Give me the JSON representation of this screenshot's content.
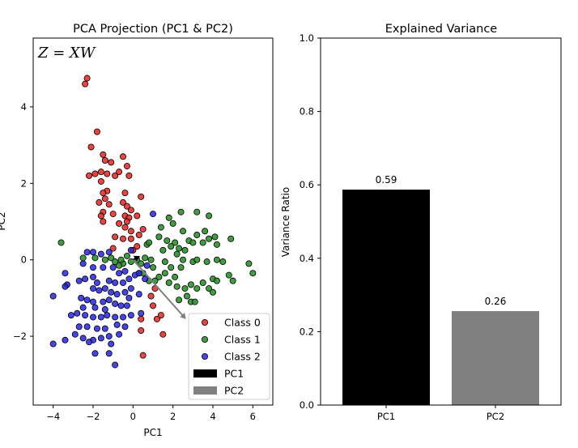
{
  "chart_data": [
    {
      "type": "scatter",
      "title": "PCA Projection (PC1 & PC2)",
      "xlabel": "PC1",
      "ylabel": "PC2",
      "xlim": [
        -5,
        7
      ],
      "ylim": [
        -3.8,
        5.8
      ],
      "xticks": [
        -4,
        -2,
        0,
        2,
        4,
        6
      ],
      "yticks": [
        -2,
        0,
        2,
        4
      ],
      "annotation": "Z = XW",
      "legend_position": "lower-right",
      "series": [
        {
          "name": "Class 0",
          "color": "#e8231f",
          "points": [
            [
              -2.4,
              4.6
            ],
            [
              -2.3,
              4.75
            ],
            [
              -1.8,
              3.35
            ],
            [
              -2.1,
              2.95
            ],
            [
              -1.5,
              2.75
            ],
            [
              -1.4,
              2.6
            ],
            [
              -1.1,
              2.55
            ],
            [
              -0.5,
              2.7
            ],
            [
              -1.3,
              2.25
            ],
            [
              -1.6,
              2.3
            ],
            [
              -1.9,
              2.25
            ],
            [
              -2.2,
              2.2
            ],
            [
              -0.9,
              2.2
            ],
            [
              -0.7,
              2.3
            ],
            [
              -0.3,
              2.45
            ],
            [
              -0.2,
              2.2
            ],
            [
              -1.6,
              2.05
            ],
            [
              -1.3,
              1.8
            ],
            [
              -1.5,
              1.75
            ],
            [
              -1.4,
              1.6
            ],
            [
              -1.7,
              1.5
            ],
            [
              -1.2,
              1.45
            ],
            [
              -0.4,
              1.75
            ],
            [
              0.4,
              1.65
            ],
            [
              -0.5,
              1.5
            ],
            [
              -0.3,
              1.4
            ],
            [
              -0.1,
              1.3
            ],
            [
              -1.5,
              1.25
            ],
            [
              -1.6,
              1.15
            ],
            [
              -1.0,
              1.2
            ],
            [
              -0.4,
              1.15
            ],
            [
              -0.2,
              1.1
            ],
            [
              0.2,
              1.15
            ],
            [
              -0.3,
              1.0
            ],
            [
              -0.7,
              0.95
            ],
            [
              -0.4,
              0.85
            ],
            [
              -0.1,
              0.75
            ],
            [
              0.3,
              0.65
            ],
            [
              -1.5,
              1.0
            ],
            [
              -0.9,
              0.6
            ],
            [
              -0.5,
              0.55
            ],
            [
              -0.1,
              0.55
            ],
            [
              -1.0,
              0.3
            ],
            [
              0.5,
              0.8
            ],
            [
              0.0,
              0.25
            ],
            [
              0.2,
              0.35
            ],
            [
              1.1,
              -0.75
            ],
            [
              0.9,
              -0.95
            ],
            [
              1.0,
              -1.2
            ],
            [
              1.4,
              -1.45
            ],
            [
              0.4,
              -1.55
            ],
            [
              1.2,
              -1.55
            ],
            [
              0.4,
              -1.85
            ],
            [
              1.5,
              -1.95
            ],
            [
              0.5,
              -2.5
            ]
          ]
        },
        {
          "name": "Class 1",
          "color": "#1e8c1e",
          "points": [
            [
              3.2,
              1.25
            ],
            [
              3.8,
              1.15
            ],
            [
              2.4,
              1.25
            ],
            [
              1.8,
              1.1
            ],
            [
              2.0,
              0.95
            ],
            [
              1.4,
              0.85
            ],
            [
              2.5,
              0.75
            ],
            [
              3.2,
              0.65
            ],
            [
              3.6,
              0.75
            ],
            [
              3.8,
              0.55
            ],
            [
              4.2,
              0.4
            ],
            [
              4.1,
              0.6
            ],
            [
              4.9,
              0.55
            ],
            [
              1.3,
              0.6
            ],
            [
              2.8,
              0.5
            ],
            [
              3.0,
              0.45
            ],
            [
              3.5,
              0.45
            ],
            [
              2.1,
              0.45
            ],
            [
              2.3,
              0.3
            ],
            [
              2.6,
              0.25
            ],
            [
              1.7,
              0.5
            ],
            [
              1.9,
              0.35
            ],
            [
              1.5,
              0.25
            ],
            [
              2.2,
              0.15
            ],
            [
              2.5,
              0.0
            ],
            [
              3.0,
              -0.05
            ],
            [
              3.2,
              0.0
            ],
            [
              3.7,
              -0.05
            ],
            [
              4.2,
              0.0
            ],
            [
              4.5,
              -0.05
            ],
            [
              5.8,
              -0.1
            ],
            [
              6.0,
              -0.35
            ],
            [
              4.8,
              -0.4
            ],
            [
              5.0,
              -0.55
            ],
            [
              4.0,
              -0.5
            ],
            [
              4.2,
              -0.55
            ],
            [
              3.5,
              -0.6
            ],
            [
              3.2,
              -0.75
            ],
            [
              3.8,
              -0.75
            ],
            [
              2.9,
              -0.65
            ],
            [
              2.6,
              -0.75
            ],
            [
              2.2,
              -0.7
            ],
            [
              1.8,
              -0.6
            ],
            [
              1.6,
              -0.35
            ],
            [
              1.3,
              -0.45
            ],
            [
              1.0,
              -0.2
            ],
            [
              0.9,
              0.0
            ],
            [
              0.6,
              0.05
            ],
            [
              0.4,
              -0.1
            ],
            [
              0.2,
              0.0
            ],
            [
              -0.1,
              -0.05
            ],
            [
              -0.3,
              0.1
            ],
            [
              -0.5,
              -0.1
            ],
            [
              0.7,
              0.4
            ],
            [
              0.5,
              -0.35
            ],
            [
              0.8,
              -0.55
            ],
            [
              1.1,
              -0.55
            ],
            [
              0.3,
              -0.35
            ],
            [
              2.1,
              -0.45
            ],
            [
              1.9,
              -0.2
            ],
            [
              2.7,
              -0.95
            ],
            [
              2.9,
              -1.1
            ],
            [
              3.1,
              -1.1
            ],
            [
              4.0,
              -0.85
            ],
            [
              2.3,
              -1.05
            ],
            [
              -0.7,
              -0.15
            ],
            [
              -0.9,
              -0.05
            ],
            [
              -1.1,
              0.05
            ],
            [
              -1.4,
              0.0
            ],
            [
              -1.9,
              0.05
            ],
            [
              -2.5,
              0.05
            ],
            [
              -3.6,
              0.45
            ],
            [
              -0.6,
              0.0
            ],
            [
              0.8,
              0.45
            ],
            [
              1.6,
              -0.05
            ],
            [
              2.4,
              -0.2
            ]
          ]
        },
        {
          "name": "Class 2",
          "color": "#2424e8",
          "points": [
            [
              -2.0,
              0.2
            ],
            [
              -2.3,
              0.2
            ],
            [
              -1.6,
              0.15
            ],
            [
              -1.2,
              0.2
            ],
            [
              -2.5,
              -0.1
            ],
            [
              -2.0,
              -0.2
            ],
            [
              -1.5,
              -0.2
            ],
            [
              -1.0,
              -0.2
            ],
            [
              -0.7,
              -0.35
            ],
            [
              -0.4,
              -0.3
            ],
            [
              -3.4,
              -0.35
            ],
            [
              -3.3,
              -0.65
            ],
            [
              -3.4,
              -0.7
            ],
            [
              -2.7,
              -0.55
            ],
            [
              -2.4,
              -0.5
            ],
            [
              -2.0,
              -0.45
            ],
            [
              -1.8,
              -0.6
            ],
            [
              -1.2,
              -0.55
            ],
            [
              -0.9,
              -0.6
            ],
            [
              -0.5,
              -0.6
            ],
            [
              -0.2,
              -0.5
            ],
            [
              0.1,
              -0.4
            ],
            [
              0.3,
              -0.35
            ],
            [
              -0.1,
              -0.75
            ],
            [
              -2.0,
              -0.75
            ],
            [
              -1.7,
              -0.8
            ],
            [
              -1.4,
              -0.75
            ],
            [
              -1.1,
              -0.85
            ],
            [
              -0.8,
              -0.9
            ],
            [
              -0.4,
              -0.85
            ],
            [
              -0.2,
              -1.0
            ],
            [
              0.3,
              -0.9
            ],
            [
              -2.6,
              -1.0
            ],
            [
              -2.3,
              -1.05
            ],
            [
              -2.0,
              -1.1
            ],
            [
              -1.5,
              -1.1
            ],
            [
              -1.2,
              -1.05
            ],
            [
              -0.9,
              -1.15
            ],
            [
              -0.6,
              -1.2
            ],
            [
              -0.3,
              -1.2
            ],
            [
              -2.5,
              -1.25
            ],
            [
              -1.9,
              -1.25
            ],
            [
              -1.4,
              -1.3
            ],
            [
              -3.1,
              -1.45
            ],
            [
              -2.8,
              -1.4
            ],
            [
              -2.4,
              -1.45
            ],
            [
              -2.0,
              -1.5
            ],
            [
              -1.6,
              -1.5
            ],
            [
              -1.3,
              -1.45
            ],
            [
              -0.9,
              -1.5
            ],
            [
              -0.5,
              -1.5
            ],
            [
              -0.1,
              -1.45
            ],
            [
              0.4,
              -1.4
            ],
            [
              -4.0,
              -0.95
            ],
            [
              -2.7,
              -1.75
            ],
            [
              -2.3,
              -1.75
            ],
            [
              -1.8,
              -1.8
            ],
            [
              -1.4,
              -1.8
            ],
            [
              -0.8,
              -1.7
            ],
            [
              -0.4,
              -1.75
            ],
            [
              -2.9,
              -1.95
            ],
            [
              -2.5,
              -2.05
            ],
            [
              -2.0,
              -2.1
            ],
            [
              -1.6,
              -2.05
            ],
            [
              -1.2,
              -2.0
            ],
            [
              -0.7,
              -1.95
            ],
            [
              -4.0,
              -2.2
            ],
            [
              -3.4,
              -2.1
            ],
            [
              -2.2,
              -2.15
            ],
            [
              -1.1,
              -2.2
            ],
            [
              -1.2,
              -2.45
            ],
            [
              -1.9,
              -2.45
            ],
            [
              -0.9,
              -2.75
            ],
            [
              0.6,
              -0.5
            ],
            [
              1.0,
              1.2
            ],
            [
              0.7,
              -0.15
            ],
            [
              -0.1,
              0.25
            ]
          ]
        }
      ],
      "arrows": [
        {
          "name": "PC1",
          "color": "#000000",
          "from": [
            0,
            0
          ],
          "to": [
            0.35,
            0.1
          ]
        },
        {
          "name": "PC2",
          "color": "#808080",
          "from": [
            0,
            0
          ],
          "to": [
            2.65,
            -1.55
          ]
        }
      ]
    },
    {
      "type": "bar",
      "title": "Explained Variance",
      "xlabel": "",
      "ylabel": "Variance Ratio",
      "ylim": [
        0,
        1.0
      ],
      "yticks": [
        0.0,
        0.2,
        0.4,
        0.6,
        0.8,
        1.0
      ],
      "categories": [
        "PC1",
        "PC2"
      ],
      "values": [
        0.587,
        0.256
      ],
      "value_labels": [
        "0.59",
        "0.26"
      ],
      "colors": [
        "#000000",
        "#808080"
      ]
    }
  ]
}
